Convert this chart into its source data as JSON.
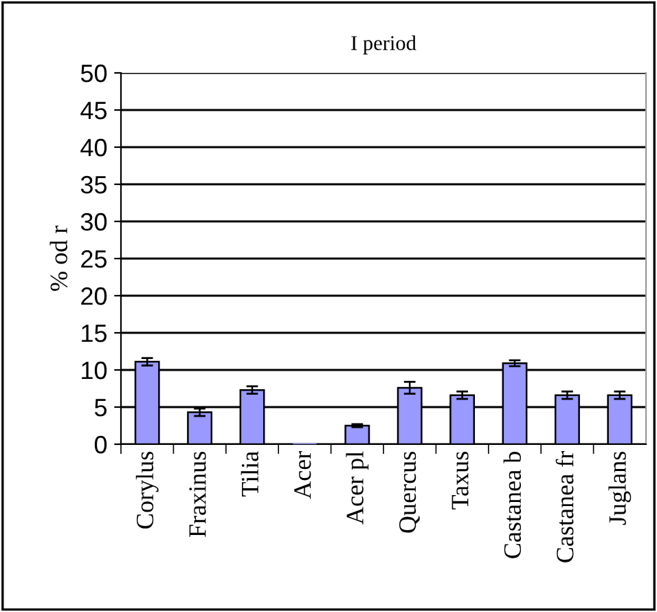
{
  "chart_data": {
    "type": "bar",
    "title": "I period",
    "ylabel": "% od r",
    "categories": [
      "Corylus",
      "Fraxinus",
      "Tilia",
      "Acer",
      "Acer pl",
      "Quercus",
      "Taxus",
      "Castanea b",
      "Castanea fr",
      "Juglans"
    ],
    "values": [
      11.1,
      4.3,
      7.3,
      0,
      2.5,
      7.6,
      6.6,
      10.9,
      6.6,
      6.6
    ],
    "errors": [
      0.5,
      0.5,
      0.5,
      null,
      0.2,
      0.8,
      0.5,
      0.4,
      0.5,
      0.5
    ],
    "color": "#9999ff",
    "ylim": [
      0,
      50
    ],
    "yticks": [
      0,
      5,
      10,
      15,
      20,
      25,
      30,
      35,
      40,
      45,
      50
    ],
    "grid": "y"
  }
}
